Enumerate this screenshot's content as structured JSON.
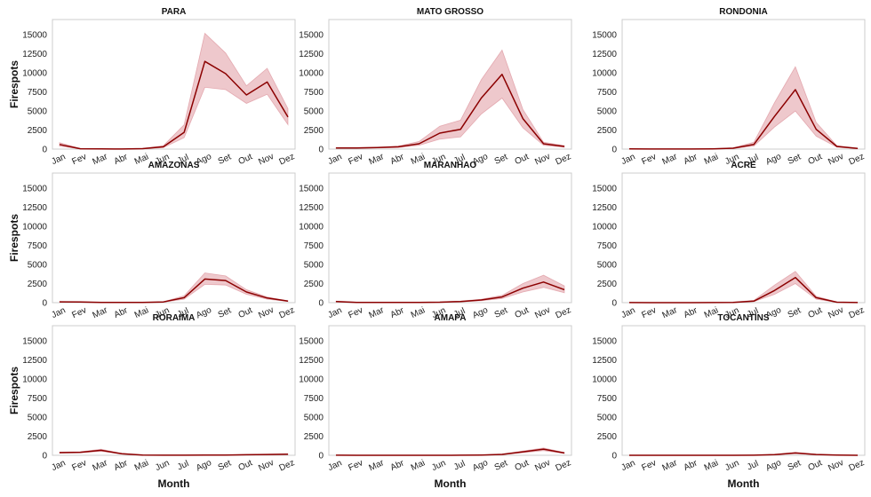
{
  "figure": {
    "x_axis_label": "Month",
    "y_axis_label": "Firespots",
    "line_color": "#8b0000",
    "band_color": "#d9868f",
    "frame_color": "#cccccc"
  },
  "chart_data": [
    {
      "type": "line",
      "title": "PARA",
      "categories": [
        "Jan",
        "Fev",
        "Mar",
        "Abr",
        "Mai",
        "Jun",
        "Jul",
        "Ago",
        "Set",
        "Out",
        "Nov",
        "Dez"
      ],
      "yticks": [
        0,
        2500,
        5000,
        7500,
        10000,
        12500,
        15000
      ],
      "ylim": [
        0,
        17000
      ],
      "series": [
        {
          "values": [
            600,
            50,
            20,
            10,
            60,
            300,
            2200,
            11500,
            9900,
            7100,
            8800,
            4200
          ],
          "lower": [
            400,
            30,
            10,
            5,
            40,
            200,
            1500,
            8100,
            7800,
            6000,
            7200,
            3200
          ],
          "upper": [
            850,
            80,
            40,
            20,
            90,
            450,
            3200,
            15200,
            12600,
            8300,
            10600,
            5300
          ]
        }
      ]
    },
    {
      "type": "line",
      "title": "MATO GROSSO",
      "categories": [
        "Jan",
        "Fev",
        "Mar",
        "Abr",
        "Mai",
        "Jun",
        "Jul",
        "Ago",
        "Set",
        "Out",
        "Nov",
        "Dez"
      ],
      "yticks": [
        0,
        2500,
        5000,
        7500,
        10000,
        12500,
        15000
      ],
      "ylim": [
        0,
        17000
      ],
      "series": [
        {
          "values": [
            150,
            150,
            200,
            300,
            700,
            2100,
            2600,
            6700,
            9800,
            4000,
            700,
            350
          ],
          "lower": [
            100,
            100,
            150,
            200,
            500,
            1300,
            1600,
            4600,
            6700,
            2800,
            500,
            250
          ],
          "upper": [
            200,
            200,
            250,
            400,
            1000,
            3000,
            3800,
            9100,
            13000,
            5200,
            900,
            450
          ]
        }
      ]
    },
    {
      "type": "line",
      "title": "RONDONIA",
      "categories": [
        "Jan",
        "Fev",
        "Mar",
        "Abr",
        "Mai",
        "Jun",
        "Jul",
        "Ago",
        "Set",
        "Out",
        "Nov",
        "Dez"
      ],
      "yticks": [
        0,
        2500,
        5000,
        7500,
        10000,
        12500,
        15000
      ],
      "ylim": [
        0,
        17000
      ],
      "series": [
        {
          "values": [
            20,
            10,
            10,
            10,
            30,
            120,
            600,
            4300,
            7800,
            2600,
            350,
            80
          ],
          "lower": [
            10,
            5,
            5,
            5,
            20,
            80,
            400,
            2900,
            5000,
            1700,
            250,
            50
          ],
          "upper": [
            30,
            15,
            15,
            15,
            40,
            180,
            900,
            6100,
            10800,
            3500,
            450,
            120
          ]
        }
      ]
    },
    {
      "type": "line",
      "title": "AMAZONAS",
      "categories": [
        "Jan",
        "Fev",
        "Mar",
        "Abr",
        "Mai",
        "Jun",
        "Jul",
        "Ago",
        "Set",
        "Out",
        "Nov",
        "Dez"
      ],
      "yticks": [
        0,
        2500,
        5000,
        7500,
        10000,
        12500,
        15000
      ],
      "ylim": [
        0,
        17000
      ],
      "series": [
        {
          "values": [
            100,
            80,
            40,
            20,
            30,
            90,
            650,
            3100,
            2900,
            1400,
            600,
            200
          ],
          "lower": [
            60,
            50,
            25,
            10,
            20,
            60,
            450,
            2400,
            2300,
            1100,
            450,
            150
          ],
          "upper": [
            140,
            110,
            55,
            30,
            40,
            120,
            900,
            3900,
            3500,
            1700,
            750,
            250
          ]
        }
      ]
    },
    {
      "type": "line",
      "title": "MARANHAO",
      "categories": [
        "Jan",
        "Fev",
        "Mar",
        "Abr",
        "Mai",
        "Jun",
        "Jul",
        "Ago",
        "Set",
        "Out",
        "Nov",
        "Dez"
      ],
      "yticks": [
        0,
        2500,
        5000,
        7500,
        10000,
        12500,
        15000
      ],
      "ylim": [
        0,
        17000
      ],
      "series": [
        {
          "values": [
            150,
            40,
            20,
            20,
            40,
            60,
            150,
            350,
            750,
            1900,
            2700,
            1700
          ],
          "lower": [
            100,
            25,
            10,
            10,
            25,
            40,
            100,
            250,
            550,
            1400,
            2000,
            1300
          ],
          "upper": [
            200,
            55,
            30,
            30,
            55,
            80,
            200,
            450,
            950,
            2500,
            3600,
            2200
          ]
        }
      ]
    },
    {
      "type": "line",
      "title": "ACRE",
      "categories": [
        "Jan",
        "Fev",
        "Mar",
        "Abr",
        "Mai",
        "Jun",
        "Jul",
        "Ago",
        "Set",
        "Out",
        "Nov",
        "Dez"
      ],
      "yticks": [
        0,
        2500,
        5000,
        7500,
        10000,
        12500,
        15000
      ],
      "ylim": [
        0,
        17000
      ],
      "series": [
        {
          "values": [
            10,
            5,
            5,
            5,
            10,
            40,
            200,
            1600,
            3300,
            650,
            60,
            15
          ],
          "lower": [
            5,
            3,
            3,
            3,
            5,
            25,
            130,
            1100,
            2500,
            450,
            40,
            10
          ],
          "upper": [
            15,
            8,
            8,
            8,
            15,
            55,
            300,
            2300,
            4100,
            850,
            80,
            20
          ]
        }
      ]
    },
    {
      "type": "line",
      "title": "RORAIMA",
      "categories": [
        "Jan",
        "Fev",
        "Mar",
        "Abr",
        "Mai",
        "Jun",
        "Jul",
        "Ago",
        "Set",
        "Out",
        "Nov",
        "Dez"
      ],
      "yticks": [
        0,
        2500,
        5000,
        7500,
        10000,
        12500,
        15000
      ],
      "ylim": [
        0,
        17000
      ],
      "series": [
        {
          "values": [
            350,
            400,
            650,
            200,
            30,
            15,
            15,
            20,
            40,
            70,
            110,
            140
          ],
          "lower": [
            280,
            330,
            520,
            150,
            20,
            10,
            10,
            15,
            30,
            50,
            80,
            100
          ],
          "upper": [
            420,
            470,
            800,
            250,
            40,
            20,
            20,
            25,
            50,
            90,
            140,
            180
          ]
        }
      ]
    },
    {
      "type": "line",
      "title": "AMAPA",
      "categories": [
        "Jan",
        "Fev",
        "Mar",
        "Abr",
        "Mai",
        "Jun",
        "Jul",
        "Ago",
        "Set",
        "Out",
        "Nov",
        "Dez"
      ],
      "yticks": [
        0,
        2500,
        5000,
        7500,
        10000,
        12500,
        15000
      ],
      "ylim": [
        0,
        17000
      ],
      "series": [
        {
          "values": [
            10,
            5,
            5,
            5,
            5,
            5,
            10,
            30,
            120,
            450,
            800,
            300
          ],
          "lower": [
            5,
            3,
            3,
            3,
            3,
            3,
            5,
            20,
            80,
            340,
            620,
            230
          ],
          "upper": [
            15,
            8,
            8,
            8,
            8,
            8,
            15,
            40,
            160,
            560,
            960,
            370
          ]
        }
      ]
    },
    {
      "type": "line",
      "title": "TOCANTINS",
      "categories": [
        "Jan",
        "Fev",
        "Mar",
        "Abr",
        "Mai",
        "Jun",
        "Jul",
        "Ago",
        "Set",
        "Out",
        "Nov",
        "Dez"
      ],
      "yticks": [
        0,
        2500,
        5000,
        7500,
        10000,
        12500,
        15000
      ],
      "ylim": [
        0,
        17000
      ],
      "series": [
        {
          "values": [
            5,
            5,
            5,
            5,
            5,
            5,
            10,
            80,
            300,
            100,
            20,
            5
          ],
          "lower": [
            3,
            3,
            3,
            3,
            3,
            3,
            5,
            50,
            220,
            70,
            10,
            3
          ],
          "upper": [
            8,
            8,
            8,
            8,
            8,
            8,
            15,
            110,
            380,
            130,
            30,
            8
          ]
        }
      ]
    }
  ]
}
